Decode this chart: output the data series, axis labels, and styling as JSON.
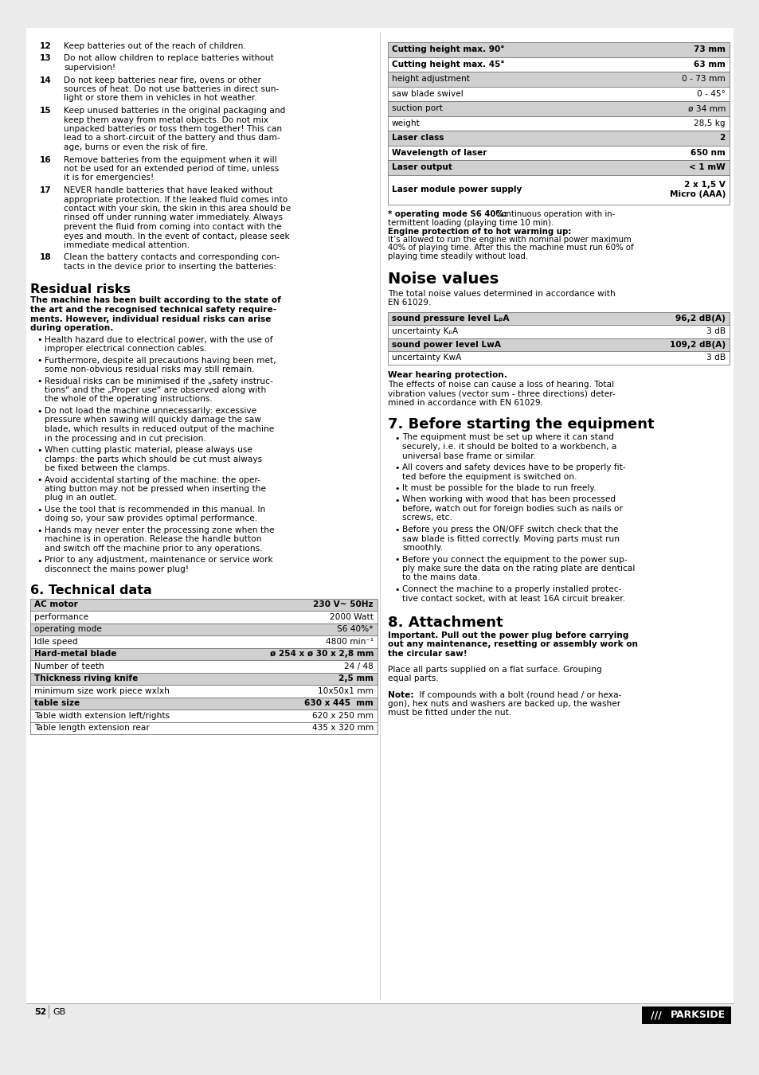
{
  "page_bg": "#ebebeb",
  "content_bg": "#ffffff",
  "page_number": "52",
  "page_label": "GB",
  "brand": "/// PARKSIDE",
  "left_items": [
    {
      "num": "12",
      "text": "Keep batteries out of the reach of children."
    },
    {
      "num": "13",
      "text": "Do not allow children to replace batteries without\nsupervision!"
    },
    {
      "num": "14",
      "text": "Do not keep batteries near fire, ovens or other\nsources of heat. Do not use batteries in direct sun-\nlight or store them in vehicles in hot weather."
    },
    {
      "num": "15",
      "text": "Keep unused batteries in the original packaging and\nkeep them away from metal objects. Do not mix\nunpacked batteries or toss them together! This can\nlead to a short-circuit of the battery and thus dam-\nage, burns or even the risk of fire."
    },
    {
      "num": "16",
      "text": "Remove batteries from the equipment when it will\nnot be used for an extended period of time, unless\nit is for emergencies!"
    },
    {
      "num": "17",
      "text": "NEVER handle batteries that have leaked without\nappropriate protection. If the leaked fluid comes into\ncontact with your skin, the skin in this area should be\nrinsed off under running water immediately. Always\nprevent the fluid from coming into contact with the\neyes and mouth. In the event of contact, please seek\nimmediate medical attention."
    },
    {
      "num": "18",
      "text": "Clean the battery contacts and corresponding con-\ntacts in the device prior to inserting the batteries:"
    }
  ],
  "residual_title": "Residual risks",
  "residual_bold": "The machine has been built according to the state of\nthe art and the recognised technical safety require-\nments. However, individual residual risks can arise\nduring operation.",
  "residual_bullets": [
    "Health hazard due to electrical power, with the use of\nimproper electrical connection cables.",
    "Furthermore, despite all precautions having been met,\nsome non-obvious residual risks may still remain.",
    "Residual risks can be minimised if the „safety instruc-\ntions“ and the „Proper use“ are observed along with\nthe whole of the operating instructions.",
    "Do not load the machine unnecessarily: excessive\npressure when sawing will quickly damage the saw\nblade, which results in reduced output of the machine\nin the processing and in cut precision.",
    "When cutting plastic material, please always use\nclamps: the parts which should be cut must always\nbe fixed between the clamps.",
    "Avoid accidental starting of the machine: the oper-\nating button may not be pressed when inserting the\nplug in an outlet.",
    "Use the tool that is recommended in this manual. In\ndoing so, your saw provides optimal performance.",
    "Hands may never enter the processing zone when the\nmachine is in operation. Release the handle button\nand switch off the machine prior to any operations.",
    "Prior to any adjustment, maintenance or service work\ndisconnect the mains power plug!"
  ],
  "tech_title": "6. Technical data",
  "tech_table": [
    {
      "label": "AC motor",
      "value": "230 V~ 50Hz",
      "bold_label": true,
      "shaded": true
    },
    {
      "label": "performance",
      "value": "2000 Watt",
      "bold_label": false,
      "shaded": false
    },
    {
      "label": "operating mode",
      "value": "S6 40%*",
      "bold_label": false,
      "shaded": true
    },
    {
      "label": "Idle speed",
      "value": "4800 min⁻¹",
      "bold_label": false,
      "shaded": false
    },
    {
      "label": "Hard-metal blade",
      "value": "ø 254 x ø 30 x 2,8 mm",
      "bold_label": true,
      "shaded": true
    },
    {
      "label": "Number of teeth",
      "value": "24 / 48",
      "bold_label": false,
      "shaded": false
    },
    {
      "label": "Thickness riving knife",
      "value": "2,5 mm",
      "bold_label": true,
      "shaded": true
    },
    {
      "label": "minimum size work piece wxlxh",
      "value": "10x50x1 mm",
      "bold_label": false,
      "shaded": false
    },
    {
      "label": "table size",
      "value": "630 x 445  mm",
      "bold_label": true,
      "shaded": true
    },
    {
      "label": "Table width extension left/rights",
      "value": "620 x 250 mm",
      "bold_label": false,
      "shaded": false
    },
    {
      "label": "Table length extension rear",
      "value": "435 x 320 mm",
      "bold_label": false,
      "shaded": false
    }
  ],
  "right_table": [
    {
      "label": "Cutting height max. 90°",
      "value": "73 mm",
      "bold_label": true,
      "shaded": true,
      "multiline": false
    },
    {
      "label": "Cutting height max. 45°",
      "value": "63 mm",
      "bold_label": true,
      "shaded": false,
      "multiline": false
    },
    {
      "label": "height adjustment",
      "value": "0 - 73 mm",
      "bold_label": false,
      "shaded": true,
      "multiline": false
    },
    {
      "label": "saw blade swivel",
      "value": "0 - 45°",
      "bold_label": false,
      "shaded": false,
      "multiline": false
    },
    {
      "label": "suction port",
      "value": "ø 34 mm",
      "bold_label": false,
      "shaded": true,
      "multiline": false
    },
    {
      "label": "weight",
      "value": "28,5 kg",
      "bold_label": false,
      "shaded": false,
      "multiline": false
    },
    {
      "label": "Laser class",
      "value": "2",
      "bold_label": true,
      "shaded": true,
      "multiline": false
    },
    {
      "label": "Wavelength of laser",
      "value": "650 nm",
      "bold_label": true,
      "shaded": false,
      "multiline": false
    },
    {
      "label": "Laser output",
      "value": "< 1 mW",
      "bold_label": true,
      "shaded": true,
      "multiline": false
    },
    {
      "label": "Laser module power supply",
      "value": "2 x 1,5 V\nMicro (AAA)",
      "bold_label": true,
      "shaded": false,
      "multiline": true
    }
  ],
  "op_note_parts": [
    {
      "text": "* operating mode S6 40%:",
      "bold": true
    },
    {
      "text": " Continuous operation with in-\ntermittent loading (playing time 10 min).",
      "bold": false
    },
    {
      "text": "\nEngine protection of to hot warming up:",
      "bold": true
    },
    {
      "text": "\nIt’s allowed to run the engine with nominal power maximum\n40% of playing time. After this the machine must run 60% of\nplaying time steadily without load.",
      "bold": false
    }
  ],
  "noise_title": "Noise values",
  "noise_intro": "The total noise values determined in accordance with\nEN 61029.",
  "noise_table": [
    {
      "label": "sound pressure level LₚA",
      "value": "96,2 dB(A)",
      "bold_label": true,
      "shaded": true
    },
    {
      "label": "uncertainty KₚA",
      "value": "3 dB",
      "bold_label": false,
      "shaded": false
    },
    {
      "label": "sound power level LᴡA",
      "value": "109,2 dB(A)",
      "bold_label": true,
      "shaded": true
    },
    {
      "label": "uncertainty KᴡA",
      "value": "3 dB",
      "bold_label": false,
      "shaded": false
    }
  ],
  "noise_warning_bold": "Wear hearing protection.",
  "noise_warning_text": "The effects of noise can cause a loss of hearing. Total\nvibration values (vector sum - three directions) deter-\nmined in accordance with EN 61029.",
  "before_title": "7. Before starting the equipment",
  "before_bullets": [
    "The equipment must be set up where it can stand\nsecurely, i.e. it should be bolted to a workbench, a\nuniversal base frame or similar.",
    "All covers and safety devices have to be properly fit-\nted before the equipment is switched on.",
    "It must be possible for the blade to run freely.",
    "When working with wood that has been processed\nbefore, watch out for foreign bodies such as nails or\nscrews, etc.",
    "Before you press the ON/OFF switch check that the\nsaw blade is fitted correctly. Moving parts must run\nsmoothly.",
    "Before you connect the equipment to the power sup-\nply make sure the data on the rating plate are dentical\nto the mains data.",
    "Connect the machine to a properly installed protec-\ntive contact socket, with at least 16A circuit breaker."
  ],
  "attach_title": "8. Attachment",
  "attach_bold": "Important. Pull out the power plug before carrying\nout any maintenance, resetting or assembly work on\nthe circular saw!",
  "attach_text1": "Place all parts supplied on a flat surface. Grouping\nequal parts.",
  "attach_note_bold": "Note:",
  "attach_note_rest": " If compounds with a bolt (round head / or hexa-\ngon), hex nuts and washers are backed up, the washer\nmust be fitted under the nut."
}
